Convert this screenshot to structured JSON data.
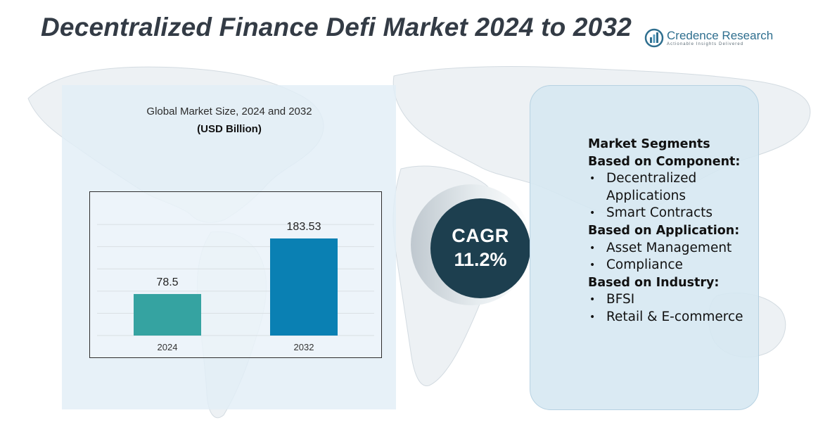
{
  "title": "Decentralized Finance Defi Market 2024 to 2032",
  "brand": {
    "name": "Credence Research",
    "tagline": "Actionable Insights Delivered"
  },
  "chart_data": {
    "type": "bar",
    "title": "Global Market Size, 2024 and 2032",
    "subtitle": "(USD Billion)",
    "categories": [
      "2024",
      "2032"
    ],
    "values": [
      78.5,
      183.53
    ],
    "value_labels": [
      "78.5",
      "183.53"
    ],
    "colors": [
      "#35a3a1",
      "#0a80b3"
    ],
    "ylim": [
      0,
      250
    ],
    "grid": true,
    "legend": "none"
  },
  "cagr": {
    "label": "CAGR",
    "value": "11.2%"
  },
  "segments": {
    "heading": "Market Segments",
    "groups": [
      {
        "title": "Based on Component:",
        "items": [
          "Decentralized Applications",
          "Smart Contracts"
        ]
      },
      {
        "title": "Based on Application:",
        "items": [
          "Asset Management",
          "Compliance"
        ]
      },
      {
        "title": "Based on Industry:",
        "items": [
          "BFSI",
          "Retail & E-commerce"
        ]
      }
    ]
  },
  "colors": {
    "title": "#333b45",
    "cagr_circle": "#1d3f4f",
    "panel": "#d6e8f2",
    "brand": "#2f6f8f"
  }
}
